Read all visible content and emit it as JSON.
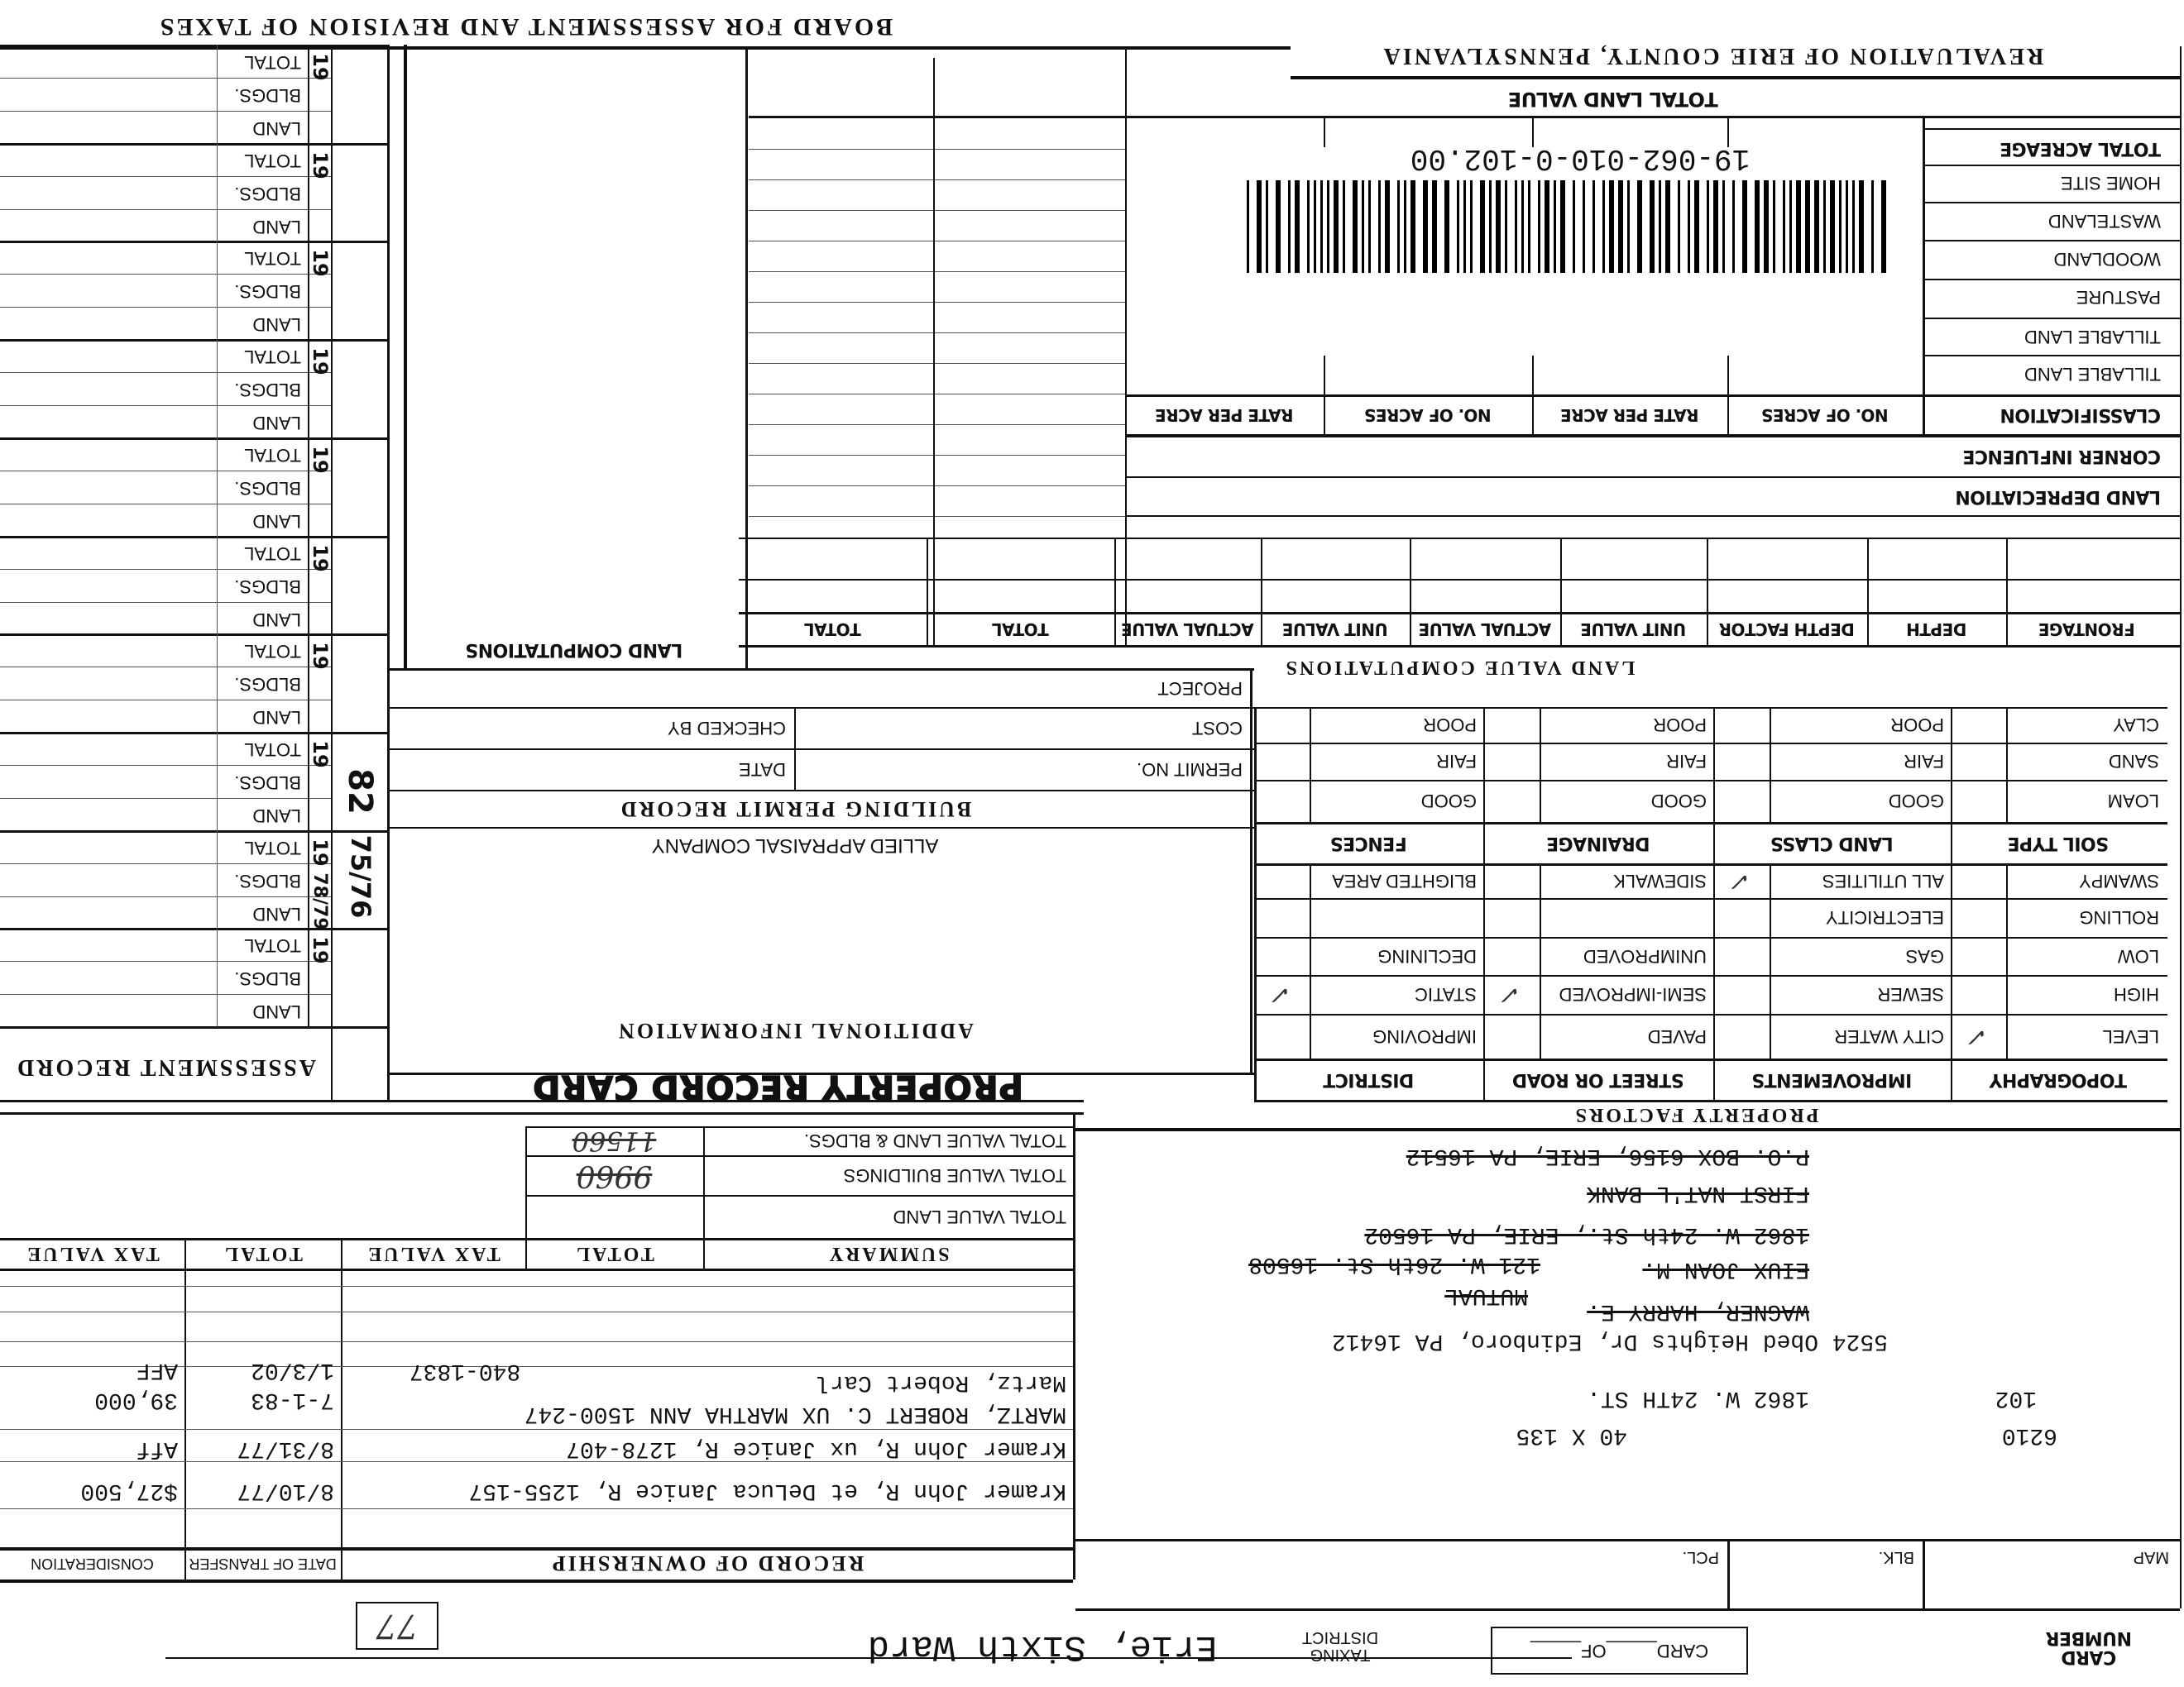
{
  "header": {
    "board_title": "BOARD FOR ASSESSMENT AND REVISION OF TAXES",
    "county_title": "REVALUATION OF ERIE COUNTY, PENNSYLVANIA",
    "total_land_value": "TOTAL LAND VALUE"
  },
  "barcode": {
    "parcel_id": "19-062-010-0-102.00"
  },
  "classification": {
    "rows": [
      "TOTAL ACREAGE",
      "HOME SITE",
      "WASTELAND",
      "WOODLAND",
      "PASTURE",
      "TILLABLE LAND",
      "TILLABLE LAND"
    ],
    "header": "CLASSIFICATION",
    "columns": [
      "NO. OF ACRES",
      "RATE PER ACRE",
      "NO. OF ACRES",
      "RATE PER ACRE"
    ],
    "corner_influence": "CORNER INFLUENCE",
    "land_depreciation": "LAND DEPRECIATION"
  },
  "land_value": {
    "title": "LAND VALUE COMPUTATIONS",
    "columns": [
      "FRONTAGE",
      "DEPTH",
      "DEPTH FACTOR",
      "UNIT VALUE",
      "ACTUAL VALUE",
      "UNIT VALUE",
      "ACTUAL VALUE",
      "TOTAL",
      "TOTAL"
    ]
  },
  "land_computations": {
    "title": "LAND COMPUTATIONS"
  },
  "property_factors": {
    "title": "PROPERTY FACTORS",
    "soil_rows": [
      [
        "CLAY",
        "POOR",
        "POOR",
        "POOR"
      ],
      [
        "SAND",
        "FAIR",
        "FAIR",
        "FAIR"
      ],
      [
        "LOAM",
        "GOOD",
        "GOOD",
        "GOOD"
      ]
    ],
    "soil_headers": [
      "SOIL TYPE",
      "LAND CLASS",
      "DRAINAGE",
      "FENCES"
    ],
    "topo_rows": [
      [
        "SWAMPY",
        "ALL UTILITIES",
        "SIDEWALK",
        "BLIGHTED AREA"
      ],
      [
        "ROLLING",
        "ELECTRICITY",
        "",
        ""
      ],
      [
        "LOW",
        "GAS",
        "UNIMPROVED",
        "DECLINING"
      ],
      [
        "HIGH",
        "SEWER",
        "SEMI-IMPROVED",
        "STATIC"
      ],
      [
        "LEVEL",
        "CITY WATER",
        "PAVED",
        "IMPROVING"
      ]
    ],
    "topo_headers": [
      "TOPOGRAPHY",
      "IMPROVEMENTS",
      "STREET OR ROAD",
      "DISTRICT"
    ],
    "check_mark": "✓",
    "checked": [
      "LEVEL",
      "ALL UTILITIES",
      "SEMI-IMPROVED",
      "STATIC"
    ]
  },
  "permit": {
    "project": "PROJECT",
    "checked_by": "CHECKED BY",
    "cost": "COST",
    "date": "DATE",
    "permit_no": "PERMIT NO.",
    "title": "BUILDING PERMIT RECORD",
    "appraiser": "ALLIED APPRAISAL COMPANY",
    "additional_info": "ADDITIONAL INFORMATION",
    "card_title": "PROPERTY RECORD CARD"
  },
  "assessment": {
    "title": "ASSESSMENT RECORD",
    "year_prefix": "19",
    "row_labels": [
      "TOTAL",
      "BLDGS.",
      "LAND"
    ],
    "stamps": [
      "82",
      "78/79",
      "75/76"
    ]
  },
  "summary": {
    "title": "SUMMARY",
    "rows": [
      "TOTAL VALUE LAND & BLDGS.",
      "TOTAL VALUE BUILDINGS",
      "TOTAL VALUE LAND"
    ],
    "total_header": "TOTAL",
    "tax_value_header": "TAX VALUE",
    "total_header_2": "TOTAL",
    "tax_value_header_2": "TAX VALUE",
    "handwritten_land_bldgs": "11560",
    "handwritten_buildings": "9960"
  },
  "ownership": {
    "title": "RECORD OF OWNERSHIP",
    "date_header": "DATE OF TRANSFER",
    "consideration_header": "CONSIDERATION",
    "entries": [
      {
        "name": "Kramer John R, et DeLuca Janice R, 1255-157",
        "date": "8/10/77",
        "consideration": "$27,500"
      },
      {
        "name": "Kramer John R, ux Janice R,  1278-407",
        "date": "8/31/77",
        "consideration": "Aff"
      },
      {
        "name": "MARTZ, ROBERT C. UX MARTHA ANN  1500-247",
        "date": "7-1-83",
        "consideration": "39,000"
      },
      {
        "name": "Martz, Robert Carl",
        "deed": "840-1837",
        "date": "1/3/02",
        "consideration": "AFF"
      }
    ]
  },
  "owner_address": {
    "lines": [
      {
        "text": "P.O. BOX 6156, ERIE, PA 16512",
        "struck": true
      },
      {
        "text": "FIRST NAT'L BANK",
        "struck": true
      },
      {
        "text": "1862 W. 24th St., ERIE, PA 16502",
        "struck": true
      },
      {
        "text": "121 W. 26th St. 16508",
        "struck": true
      },
      {
        "text": "EIUX JOAN M.",
        "struck": true
      },
      {
        "text": "MUTUAL",
        "struck": true
      },
      {
        "text": "WAGNER, HARRY E.",
        "struck": true
      },
      {
        "text": "5524 Obed Heights Dr, Edinboro, PA 16412",
        "struck": false
      }
    ]
  },
  "property": {
    "parcel": "102",
    "address": "1862 W. 24TH ST.",
    "code": "6210",
    "dimensions": "40 X 135"
  },
  "footer": {
    "map_label": "MAP",
    "blk_label": "BLK.",
    "pcl_label": "PCL.",
    "card_number": "CARD NUMBER",
    "card_of": "CARD_____OF_____",
    "taxing_district_label": "TAXING DISTRICT",
    "taxing_district": "Erie, Sixth Ward",
    "box_number": "77"
  }
}
